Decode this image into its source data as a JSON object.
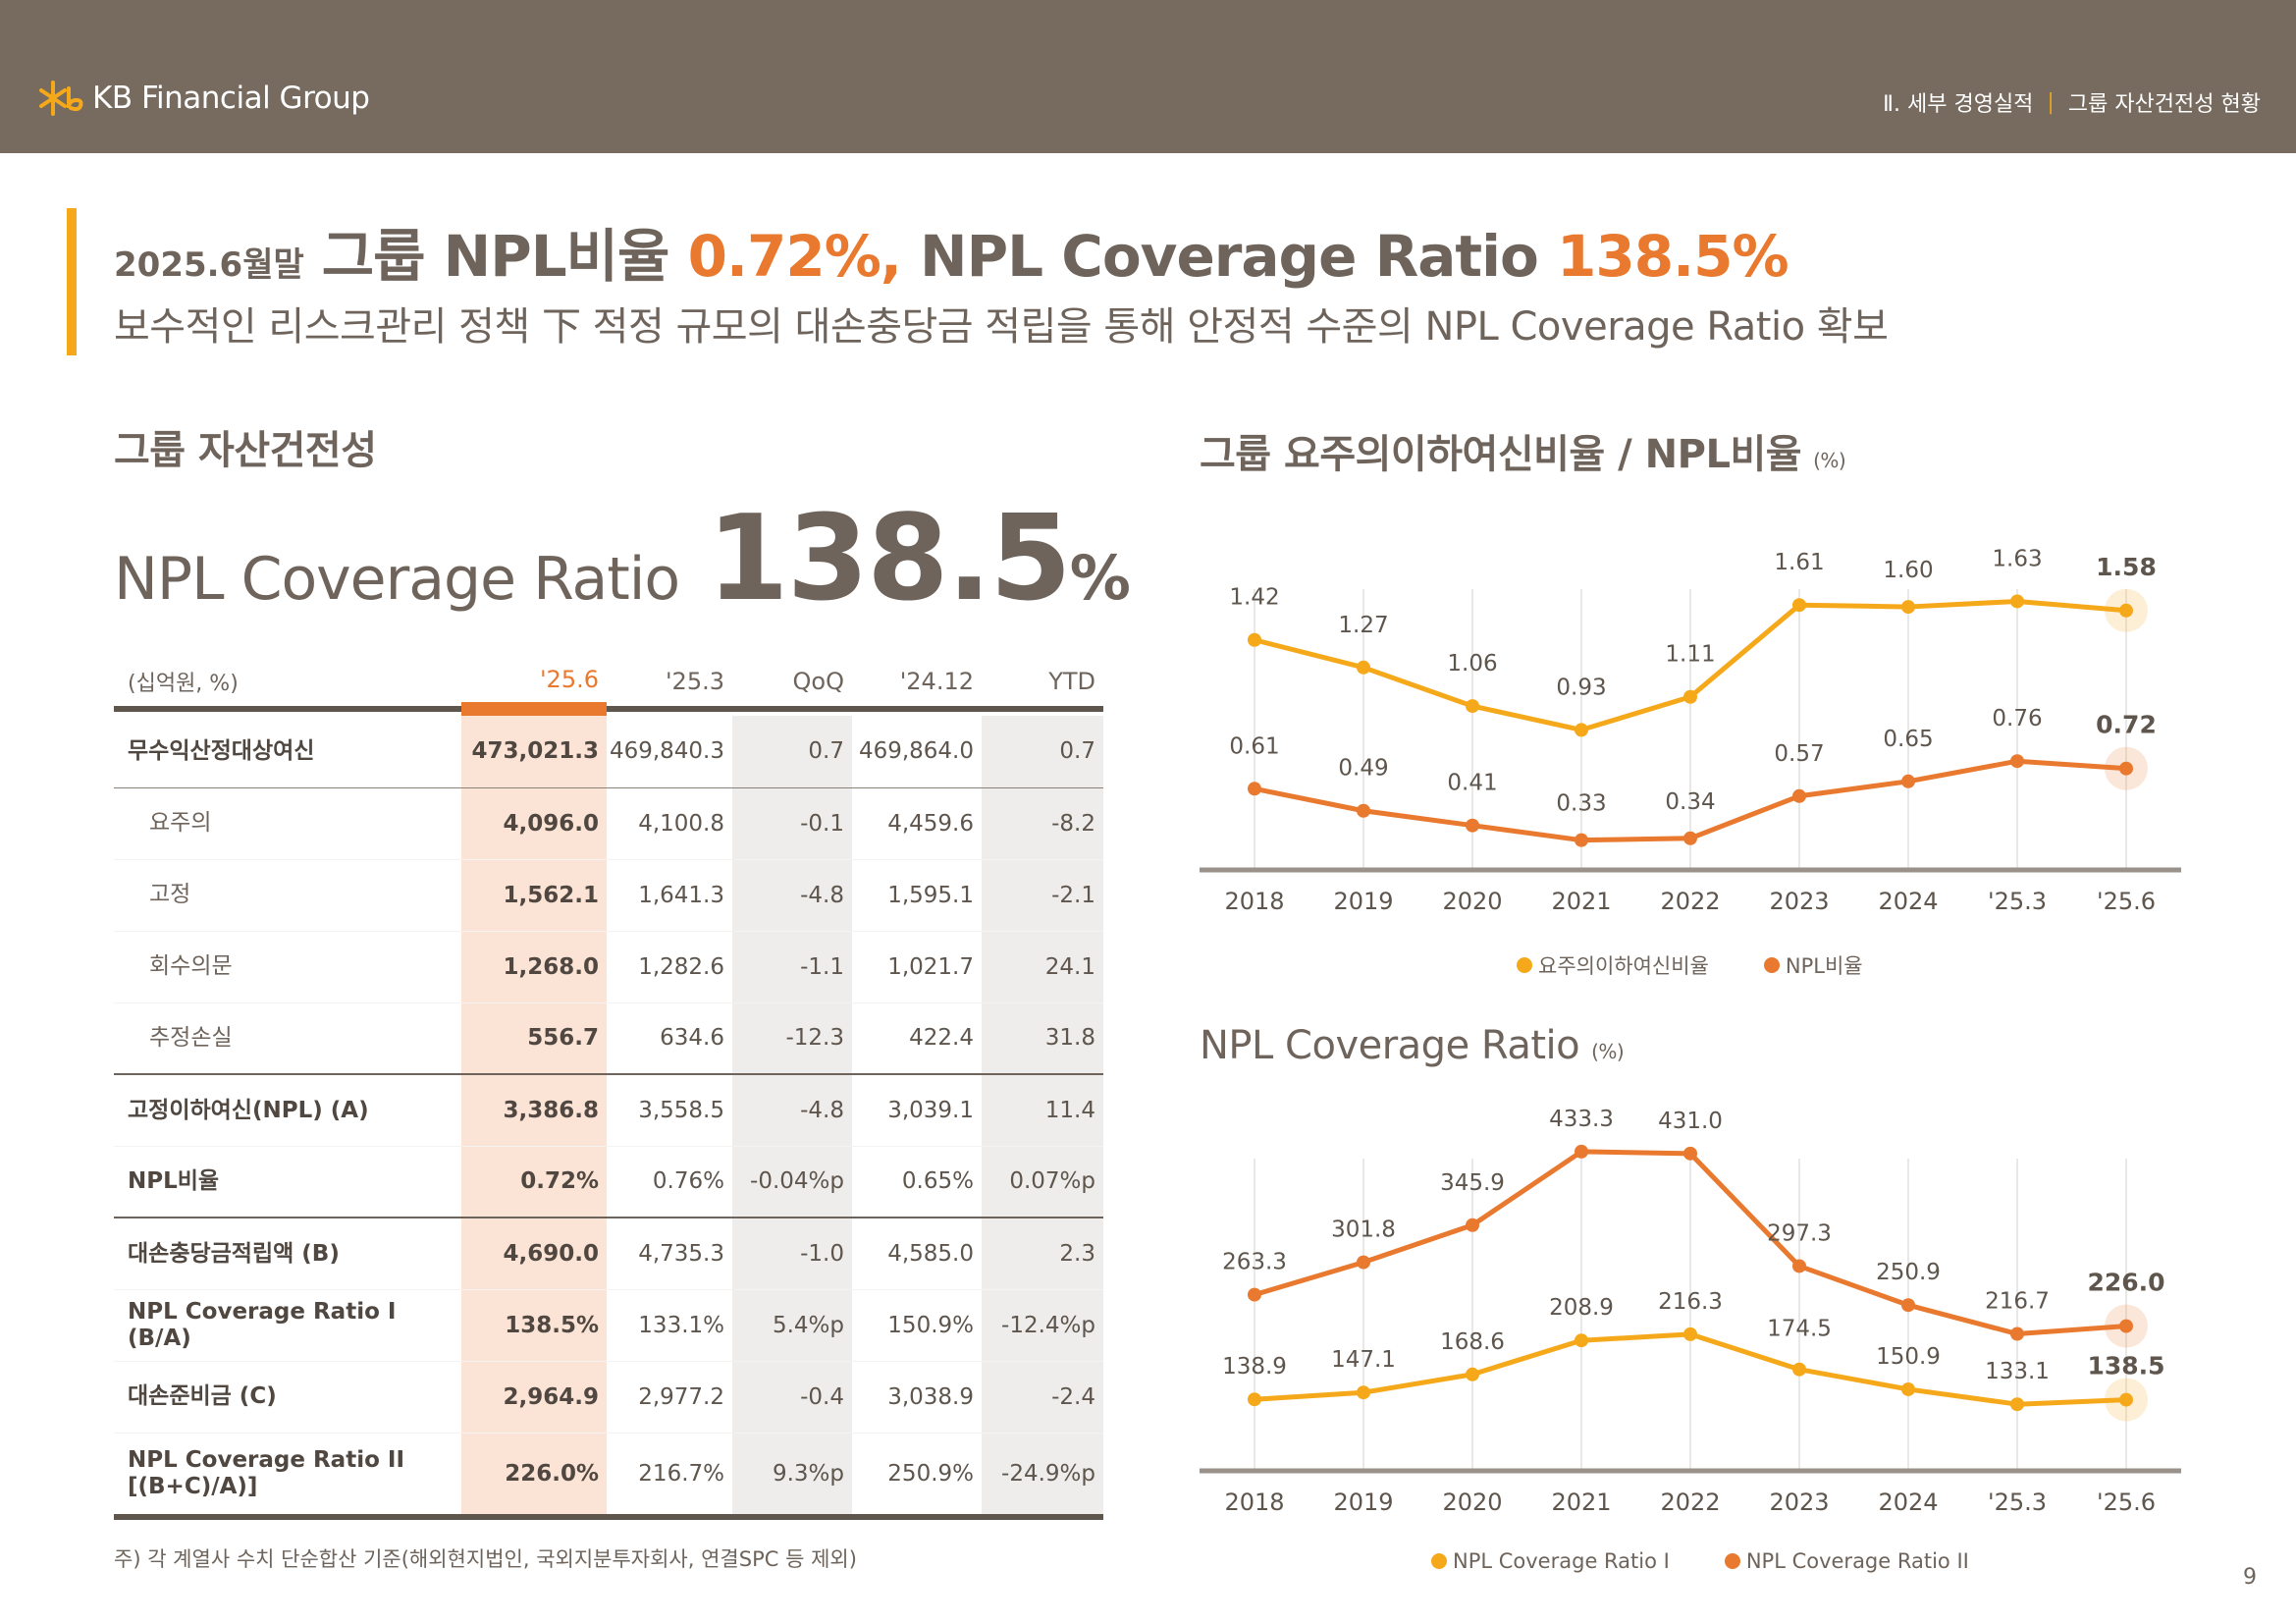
{
  "header": {
    "brand": "KB Financial Group",
    "breadcrumb_section": "Ⅱ. 세부 경영실적",
    "breadcrumb_page": "그룹 자산건전성 현황",
    "bg_color": "#776b60",
    "accent_color": "#f5a91a"
  },
  "headline": {
    "date": "2025.6월말",
    "part1": "그룹 NPL비율 ",
    "npl_value": "0.72%,",
    "part2": " NPL Coverage Ratio ",
    "coverage_value": "138.5%",
    "subtitle": "보수적인 리스크관리 정책 下 적정 규모의 대손충당금 적립을 통해 안정적 수준의 NPL Coverage Ratio 확보"
  },
  "left_section": {
    "title": "그룹 자산건전성",
    "kpi_label": "NPL Coverage Ratio",
    "kpi_value": "138.5",
    "kpi_unit": "%"
  },
  "table": {
    "unit_label": "(십억원, %)",
    "columns": [
      "'25.6",
      "'25.3",
      "QoQ",
      "'24.12",
      "YTD"
    ],
    "rows": [
      {
        "label": "무수익산정대상여신",
        "values": [
          "473,021.3",
          "469,840.3",
          "0.7",
          "469,864.0",
          "0.7"
        ]
      },
      {
        "label": "요주의",
        "values": [
          "4,096.0",
          "4,100.8",
          "-0.1",
          "4,459.6",
          "-8.2"
        ]
      },
      {
        "label": "고정",
        "values": [
          "1,562.1",
          "1,641.3",
          "-4.8",
          "1,595.1",
          "-2.1"
        ]
      },
      {
        "label": "회수의문",
        "values": [
          "1,268.0",
          "1,282.6",
          "-1.1",
          "1,021.7",
          "24.1"
        ]
      },
      {
        "label": "추정손실",
        "values": [
          "556.7",
          "634.6",
          "-12.3",
          "422.4",
          "31.8"
        ]
      },
      {
        "label": "고정이하여신(NPL) (A)",
        "values": [
          "3,386.8",
          "3,558.5",
          "-4.8",
          "3,039.1",
          "11.4"
        ]
      },
      {
        "label": "NPL비율",
        "values": [
          "0.72%",
          "0.76%",
          "-0.04%p",
          "0.65%",
          "0.07%p"
        ]
      },
      {
        "label": "대손충당금적립액 (B)",
        "values": [
          "4,690.0",
          "4,735.3",
          "-1.0",
          "4,585.0",
          "2.3"
        ]
      },
      {
        "label": "NPL Coverage Ratio I (B/A)",
        "values": [
          "138.5%",
          "133.1%",
          "5.4%p",
          "150.9%",
          "-12.4%p"
        ]
      },
      {
        "label": "대손준비금 (C)",
        "values": [
          "2,964.9",
          "2,977.2",
          "-0.4",
          "3,038.9",
          "-2.4"
        ]
      },
      {
        "label": "NPL Coverage Ratio II [(B+C)/A)]",
        "values": [
          "226.0%",
          "216.7%",
          "9.3%p",
          "250.9%",
          "-24.9%p"
        ]
      }
    ],
    "footnote": "주) 각 계열사 수치 단순합산 기준(해외현지법인, 국외지분투자회사, 연결SPC 등 제외)"
  },
  "colors": {
    "yellow": "#f5a91a",
    "orange": "#e8792f",
    "text": "#6e645b",
    "axis": "#9a918a",
    "highlight_col": "#fbe3d6",
    "shade_col": "#efedeb"
  },
  "chart_data": [
    {
      "type": "line",
      "title": "그룹 요주의이하여신비율 / NPL비율",
      "unit": "(%)",
      "categories": [
        "2018",
        "2019",
        "2020",
        "2021",
        "2022",
        "2023",
        "2024",
        "'25.3",
        "'25.6"
      ],
      "series": [
        {
          "name": "요주의이하여신비율",
          "color": "#f5a91a",
          "values": [
            1.42,
            1.27,
            1.06,
            0.93,
            1.11,
            1.61,
            1.6,
            1.63,
            1.58
          ],
          "labels": [
            "1.42",
            "1.27",
            "1.06",
            "0.93",
            "1.11",
            "1.61",
            "1.60",
            "1.63",
            "1.58"
          ]
        },
        {
          "name": "NPL비율",
          "color": "#e8792f",
          "values": [
            0.61,
            0.49,
            0.41,
            0.33,
            0.34,
            0.57,
            0.65,
            0.76,
            0.72
          ],
          "labels": [
            "0.61",
            "0.49",
            "0.41",
            "0.33",
            "0.34",
            "0.57",
            "0.65",
            "0.76",
            "0.72"
          ]
        }
      ],
      "ylim": [
        0.2,
        1.75
      ],
      "grid": false,
      "legend": "bottom"
    },
    {
      "type": "line",
      "title": "NPL Coverage Ratio",
      "unit": "(%)",
      "categories": [
        "2018",
        "2019",
        "2020",
        "2021",
        "2022",
        "2023",
        "2024",
        "'25.3",
        "'25.6"
      ],
      "series": [
        {
          "name": "NPL Coverage Ratio I",
          "color": "#f5a91a",
          "values": [
            138.9,
            147.1,
            168.6,
            208.9,
            216.3,
            174.5,
            150.9,
            133.1,
            138.5
          ],
          "labels": [
            "138.9",
            "147.1",
            "168.6",
            "208.9",
            "216.3",
            "174.5",
            "150.9",
            "133.1",
            "138.5"
          ]
        },
        {
          "name": "NPL Coverage Ratio II",
          "color": "#e8792f",
          "values": [
            263.3,
            301.8,
            345.9,
            433.3,
            431.0,
            297.3,
            250.9,
            216.7,
            226.0
          ],
          "labels": [
            "263.3",
            "301.8",
            "345.9",
            "433.3",
            "431.0",
            "297.3",
            "250.9",
            "216.7",
            "226.0"
          ]
        }
      ],
      "ylim": [
        40,
        460
      ],
      "grid": false,
      "legend": "bottom"
    }
  ],
  "page_number": "9"
}
